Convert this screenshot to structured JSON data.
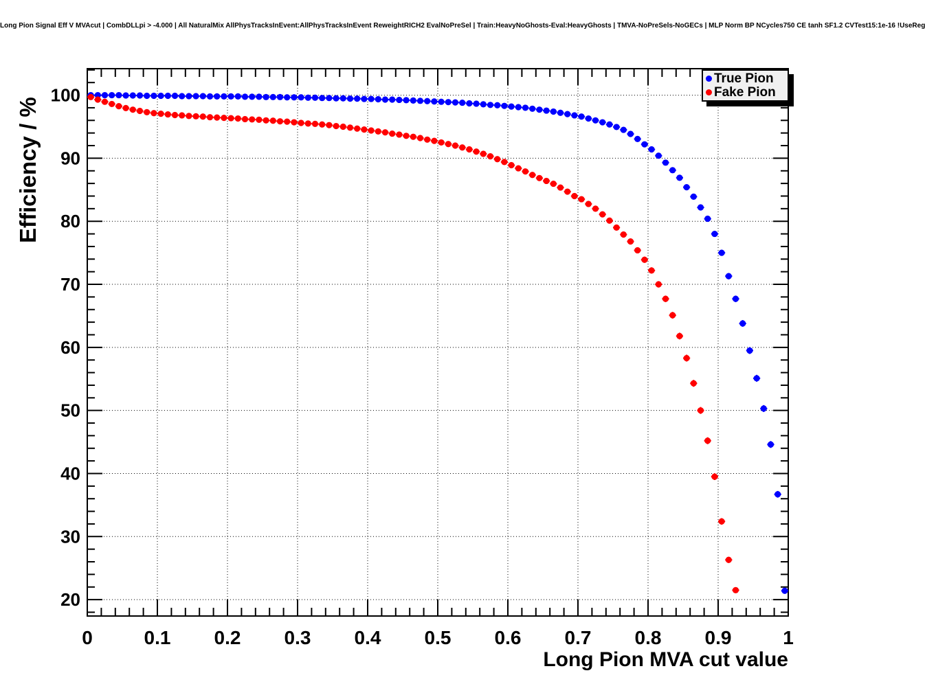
{
  "title": "Long Pion Signal Eff V MVAcut | CombDLLpi > -4.000 | All NaturalMix AllPhysTracksInEvent:AllPhysTracksInEvent ReweightRICH2 EvalNoPreSel | Train:HeavyNoGhosts-Eval:HeavyGhosts | TMVA-NoPreSels-NoGECs | MLP Norm BP NCycles750 CE tanh SF1.2 CVTest15:1e-16 !UseReg",
  "colors": {
    "true_pion": "#0000ff",
    "fake_pion": "#ff0000",
    "grid": "#000000",
    "legend_fill": "#f0f0f0",
    "background": "#ffffff"
  },
  "legend": {
    "position": "top-right",
    "entries": [
      {
        "label": "True Pion",
        "color": "#0000ff",
        "marker": "filled-circle"
      },
      {
        "label": "Fake Pion",
        "color": "#ff0000",
        "marker": "filled-circle"
      }
    ]
  },
  "chart_data": {
    "type": "scatter",
    "title": "Long Pion Signal Eff V MVAcut | CombDLLpi > -4.000 | All NaturalMix AllPhysTracksInEvent:AllPhysTracksInEvent ReweightRICH2 EvalNoPreSel | Train:HeavyNoGhosts-Eval:HeavyGhosts | TMVA-NoPreSels-NoGECs | MLP Norm BP NCycles750 CE tanh SF1.2 CVTest15:1e-16 !UseReg",
    "xlabel": "Long Pion MVA cut value",
    "ylabel": "Efficiency / %",
    "xlim": [
      0,
      1
    ],
    "ylim": [
      17.4,
      104.2
    ],
    "x_ticks": [
      0,
      0.1,
      0.2,
      0.3,
      0.4,
      0.5,
      0.6,
      0.7,
      0.8,
      0.9,
      1
    ],
    "y_ticks": [
      20,
      30,
      40,
      50,
      60,
      70,
      80,
      90,
      100
    ],
    "x_minor_step": 0.02,
    "y_minor_step": 2,
    "grid": true,
    "grid_style": "dotted",
    "marker": "filled-circle-with-xerr",
    "x_bin_half_width": 0.005,
    "legend_position": "top-right",
    "series": [
      {
        "name": "True Pion",
        "color": "#0000ff",
        "x": [
          0.005,
          0.015,
          0.025,
          0.035,
          0.045,
          0.055,
          0.065,
          0.075,
          0.085,
          0.095,
          0.105,
          0.115,
          0.125,
          0.135,
          0.145,
          0.155,
          0.165,
          0.175,
          0.185,
          0.195,
          0.205,
          0.215,
          0.225,
          0.235,
          0.245,
          0.255,
          0.265,
          0.275,
          0.285,
          0.295,
          0.305,
          0.315,
          0.325,
          0.335,
          0.345,
          0.355,
          0.365,
          0.375,
          0.385,
          0.395,
          0.405,
          0.415,
          0.425,
          0.435,
          0.445,
          0.455,
          0.465,
          0.475,
          0.485,
          0.495,
          0.505,
          0.515,
          0.525,
          0.535,
          0.545,
          0.555,
          0.565,
          0.575,
          0.585,
          0.595,
          0.605,
          0.615,
          0.625,
          0.635,
          0.645,
          0.655,
          0.665,
          0.675,
          0.685,
          0.695,
          0.705,
          0.715,
          0.725,
          0.735,
          0.745,
          0.755,
          0.765,
          0.775,
          0.785,
          0.795,
          0.805,
          0.815,
          0.825,
          0.835,
          0.845,
          0.855,
          0.865,
          0.875,
          0.885,
          0.895,
          0.905,
          0.915,
          0.925,
          0.935,
          0.945,
          0.955,
          0.965,
          0.975,
          0.985,
          0.995
        ],
        "y": [
          100,
          100,
          100,
          100,
          100,
          99.95,
          99.95,
          99.95,
          99.9,
          99.9,
          99.9,
          99.9,
          99.9,
          99.85,
          99.85,
          99.85,
          99.85,
          99.8,
          99.8,
          99.8,
          99.8,
          99.8,
          99.75,
          99.75,
          99.75,
          99.7,
          99.7,
          99.7,
          99.65,
          99.65,
          99.65,
          99.6,
          99.6,
          99.55,
          99.55,
          99.5,
          99.5,
          99.45,
          99.45,
          99.4,
          99.4,
          99.35,
          99.3,
          99.3,
          99.25,
          99.2,
          99.15,
          99.1,
          99.05,
          99,
          98.95,
          98.9,
          98.85,
          98.8,
          98.7,
          98.65,
          98.55,
          98.45,
          98.4,
          98.3,
          98.2,
          98.1,
          98,
          97.85,
          97.7,
          97.55,
          97.4,
          97.2,
          97,
          96.8,
          96.6,
          96.3,
          96,
          95.7,
          95.35,
          94.95,
          94.5,
          93.85,
          93.05,
          92.2,
          91.4,
          90.4,
          89.3,
          88.1,
          86.9,
          85.4,
          83.9,
          82.2,
          80.4,
          78,
          75,
          71.3,
          67.7,
          63.8,
          59.5,
          55.1,
          50.3,
          44.6,
          36.7,
          21.4
        ]
      },
      {
        "name": "Fake Pion",
        "color": "#ff0000",
        "x": [
          0.005,
          0.015,
          0.025,
          0.035,
          0.045,
          0.055,
          0.065,
          0.075,
          0.085,
          0.095,
          0.105,
          0.115,
          0.125,
          0.135,
          0.145,
          0.155,
          0.165,
          0.175,
          0.185,
          0.195,
          0.205,
          0.215,
          0.225,
          0.235,
          0.245,
          0.255,
          0.265,
          0.275,
          0.285,
          0.295,
          0.305,
          0.315,
          0.325,
          0.335,
          0.345,
          0.355,
          0.365,
          0.375,
          0.385,
          0.395,
          0.405,
          0.415,
          0.425,
          0.435,
          0.445,
          0.455,
          0.465,
          0.475,
          0.485,
          0.495,
          0.505,
          0.515,
          0.525,
          0.535,
          0.545,
          0.555,
          0.565,
          0.575,
          0.585,
          0.595,
          0.605,
          0.615,
          0.625,
          0.635,
          0.645,
          0.655,
          0.665,
          0.675,
          0.685,
          0.695,
          0.705,
          0.715,
          0.725,
          0.735,
          0.745,
          0.755,
          0.765,
          0.775,
          0.785,
          0.795,
          0.805,
          0.815,
          0.825,
          0.835,
          0.845,
          0.855,
          0.865,
          0.875,
          0.885,
          0.895,
          0.905,
          0.915,
          0.925
        ],
        "y": [
          99.7,
          99.3,
          98.95,
          98.6,
          98.25,
          97.95,
          97.7,
          97.5,
          97.3,
          97.15,
          97.05,
          96.95,
          96.85,
          96.8,
          96.7,
          96.65,
          96.6,
          96.5,
          96.45,
          96.4,
          96.35,
          96.3,
          96.2,
          96.15,
          96.1,
          96,
          95.95,
          95.85,
          95.8,
          95.7,
          95.6,
          95.5,
          95.45,
          95.35,
          95.25,
          95.1,
          95,
          94.85,
          94.7,
          94.55,
          94.4,
          94.25,
          94.1,
          93.9,
          93.75,
          93.55,
          93.4,
          93.2,
          92.95,
          92.75,
          92.5,
          92.25,
          92,
          91.7,
          91.4,
          91.05,
          90.7,
          90.3,
          89.85,
          89.4,
          88.9,
          88.4,
          87.9,
          87.35,
          86.85,
          86.4,
          85.95,
          85.35,
          84.7,
          84,
          83.5,
          82.75,
          82,
          81.1,
          80.1,
          79,
          77.9,
          76.8,
          75.4,
          73.9,
          72.2,
          70,
          67.7,
          65.1,
          61.8,
          58.3,
          54.3,
          50,
          45.2,
          39.5,
          32.4,
          26.3,
          21.5
        ]
      }
    ]
  }
}
